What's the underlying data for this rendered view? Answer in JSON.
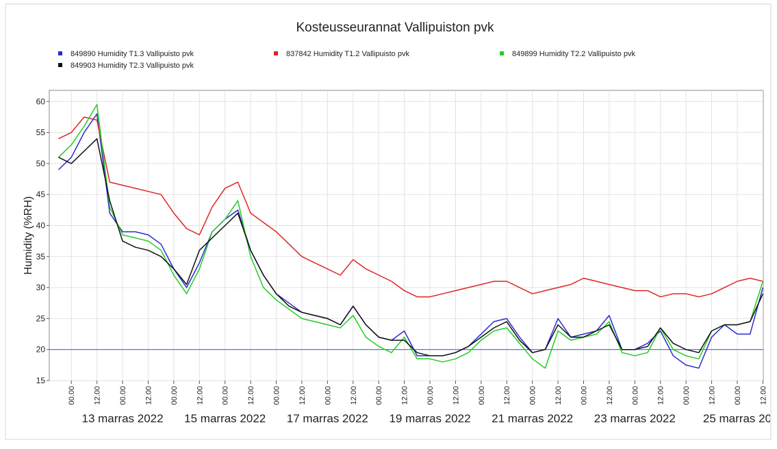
{
  "chart_data": {
    "type": "line",
    "title": "Kosteusseurannat Vallipuiston pvk",
    "y_label": "Humidity (%RH)",
    "x": [
      "2022-11-11T18:00",
      "2022-11-12T00:00",
      "2022-11-12T06:00",
      "2022-11-12T12:00",
      "2022-11-12T18:00",
      "2022-11-13T00:00",
      "2022-11-13T06:00",
      "2022-11-13T12:00",
      "2022-11-13T18:00",
      "2022-11-14T00:00",
      "2022-11-14T06:00",
      "2022-11-14T12:00",
      "2022-11-14T18:00",
      "2022-11-15T00:00",
      "2022-11-15T06:00",
      "2022-11-15T12:00",
      "2022-11-15T18:00",
      "2022-11-16T00:00",
      "2022-11-16T06:00",
      "2022-11-16T12:00",
      "2022-11-16T18:00",
      "2022-11-17T00:00",
      "2022-11-17T06:00",
      "2022-11-17T12:00",
      "2022-11-17T18:00",
      "2022-11-18T00:00",
      "2022-11-18T06:00",
      "2022-11-18T12:00",
      "2022-11-18T18:00",
      "2022-11-19T00:00",
      "2022-11-19T06:00",
      "2022-11-19T12:00",
      "2022-11-19T18:00",
      "2022-11-20T00:00",
      "2022-11-20T06:00",
      "2022-11-20T12:00",
      "2022-11-20T18:00",
      "2022-11-21T00:00",
      "2022-11-21T06:00",
      "2022-11-21T12:00",
      "2022-11-21T18:00",
      "2022-11-22T00:00",
      "2022-11-22T06:00",
      "2022-11-22T12:00",
      "2022-11-22T18:00",
      "2022-11-23T00:00",
      "2022-11-23T06:00",
      "2022-11-23T12:00",
      "2022-11-23T18:00",
      "2022-11-24T00:00",
      "2022-11-24T06:00",
      "2022-11-24T12:00",
      "2022-11-24T18:00",
      "2022-11-25T00:00",
      "2022-11-25T06:00",
      "2022-11-25T12:00"
    ],
    "series": [
      {
        "name": "849890  Humidity T1.3 Vallipuisto pvk",
        "color": "#2b2bd0",
        "values": [
          49,
          51,
          55,
          58,
          42,
          39,
          39,
          38.5,
          37,
          33,
          30,
          34,
          39,
          41,
          42.5,
          36,
          32,
          29,
          27.5,
          26,
          25.5,
          25,
          24,
          27,
          24,
          22,
          21.5,
          23,
          19,
          19,
          19,
          19.5,
          20.5,
          22.5,
          24.5,
          25,
          22,
          19.5,
          20,
          25,
          22,
          22.5,
          23,
          25.5,
          20,
          20,
          21,
          23,
          19,
          17.5,
          17,
          22,
          24,
          22.5,
          22.5,
          30
        ]
      },
      {
        "name": "837842  Humidity T1.2 Vallipuisto pvk",
        "color": "#e02424",
        "values": [
          54,
          55,
          57.5,
          57,
          47,
          46.5,
          46,
          45.5,
          45,
          42,
          39.5,
          38.5,
          43,
          46,
          47,
          42,
          40.5,
          39,
          37,
          35,
          34,
          33,
          32,
          34.5,
          33,
          32,
          31,
          29.5,
          28.5,
          28.5,
          29,
          29.5,
          30,
          30.5,
          31,
          31,
          30,
          29,
          29.5,
          30,
          30.5,
          31.5,
          31,
          30.5,
          30,
          29.5,
          29.5,
          28.5,
          29,
          29,
          28.5,
          29,
          30,
          31,
          31.5,
          31
        ]
      },
      {
        "name": "849899  Humidity T2.2 Vallipuisto pvk",
        "color": "#22cc22",
        "values": [
          51,
          53,
          56,
          59.5,
          43,
          38.5,
          38,
          37.5,
          36,
          32,
          29,
          33,
          39,
          41,
          44,
          35,
          30,
          28,
          26.5,
          25,
          24.5,
          24,
          23.5,
          25.5,
          22,
          20.5,
          19.5,
          22,
          18.5,
          18.5,
          18,
          18.5,
          19.5,
          21.5,
          23,
          23.5,
          21,
          18.5,
          17,
          23,
          21.5,
          22,
          22.5,
          24.5,
          19.5,
          19,
          19.5,
          23.5,
          20,
          19,
          18.5,
          23,
          24,
          24,
          24.5,
          31
        ]
      },
      {
        "name": "849903  Humidity T2.3 Vallipuisto pvk",
        "color": "#111111",
        "values": [
          51,
          50,
          52,
          54,
          44,
          37.5,
          36.5,
          36,
          35,
          33,
          30.5,
          36,
          38,
          40,
          42,
          36,
          32,
          29,
          27,
          26,
          25.5,
          25,
          24,
          27,
          24,
          22,
          21.5,
          21.5,
          19.5,
          19,
          19,
          19.5,
          20.5,
          22,
          23.5,
          24.5,
          21.5,
          19.5,
          20,
          24,
          22,
          22,
          23,
          24,
          20,
          20,
          20.5,
          23.5,
          21,
          20,
          19.5,
          23,
          24,
          24,
          24.5,
          29
        ]
      }
    ],
    "xlim": [
      "2022-11-11T13:40",
      "2022-11-25T12:12"
    ],
    "xticks": [
      {
        "value": "2022-11-12T00:00",
        "label": "00.00"
      },
      {
        "value": "2022-11-12T12:00",
        "label": "12.00"
      },
      {
        "value": "2022-11-13T00:00",
        "label": "00.00"
      },
      {
        "value": "2022-11-13T12:00",
        "label": "12.00"
      },
      {
        "value": "2022-11-14T00:00",
        "label": "00.00"
      },
      {
        "value": "2022-11-14T12:00",
        "label": "12.00"
      },
      {
        "value": "2022-11-15T00:00",
        "label": "00.00"
      },
      {
        "value": "2022-11-15T12:00",
        "label": "12.00"
      },
      {
        "value": "2022-11-16T00:00",
        "label": "00.00"
      },
      {
        "value": "2022-11-16T12:00",
        "label": "12.00"
      },
      {
        "value": "2022-11-17T00:00",
        "label": "00.00"
      },
      {
        "value": "2022-11-17T12:00",
        "label": "12.00"
      },
      {
        "value": "2022-11-18T00:00",
        "label": "00.00"
      },
      {
        "value": "2022-11-18T12:00",
        "label": "12.00"
      },
      {
        "value": "2022-11-19T00:00",
        "label": "00.00"
      },
      {
        "value": "2022-11-19T12:00",
        "label": "12.00"
      },
      {
        "value": "2022-11-20T00:00",
        "label": "00.00"
      },
      {
        "value": "2022-11-20T12:00",
        "label": "12.00"
      },
      {
        "value": "2022-11-21T00:00",
        "label": "00.00"
      },
      {
        "value": "2022-11-21T12:00",
        "label": "12.00"
      },
      {
        "value": "2022-11-22T00:00",
        "label": "00.00"
      },
      {
        "value": "2022-11-22T12:00",
        "label": "12.00"
      },
      {
        "value": "2022-11-23T00:00",
        "label": "00.00"
      },
      {
        "value": "2022-11-23T12:00",
        "label": "12.00"
      },
      {
        "value": "2022-11-24T00:00",
        "label": "00.00"
      },
      {
        "value": "2022-11-24T12:00",
        "label": "12.00"
      },
      {
        "value": "2022-11-25T00:00",
        "label": "00.00"
      },
      {
        "value": "2022-11-25T12:00",
        "label": "12.00"
      }
    ],
    "date_labels": [
      {
        "value": "2022-11-13T00:00",
        "label": "13 marras 2022"
      },
      {
        "value": "2022-11-15T00:00",
        "label": "15 marras 2022"
      },
      {
        "value": "2022-11-17T00:00",
        "label": "17 marras 2022"
      },
      {
        "value": "2022-11-19T00:00",
        "label": "19 marras 2022"
      },
      {
        "value": "2022-11-21T00:00",
        "label": "21 marras 2022"
      },
      {
        "value": "2022-11-23T00:00",
        "label": "23 marras 2022"
      },
      {
        "value": "2022-11-25T00:00",
        "label": "25 marras 20"
      }
    ],
    "ylim": [
      15,
      61.8
    ],
    "yticks": [
      15,
      20,
      25,
      30,
      35,
      40,
      45,
      50,
      55,
      60
    ],
    "grid": true,
    "reference_line": {
      "value": 20,
      "color": "#3f6fc9"
    }
  }
}
